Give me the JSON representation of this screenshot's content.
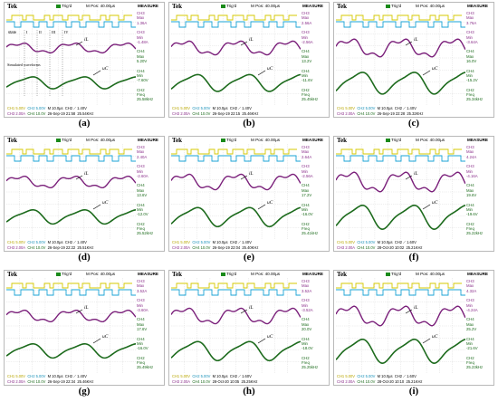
{
  "common": {
    "tek": "Tek",
    "trig": "Trig'd",
    "mpos": "M Pos: 40.00µs",
    "measure": "MEASURE",
    "ch1": "CH1  5.00V",
    "ch2": "CH2  5.00V",
    "mtime": "M 10.0µs",
    "ch3": "CH3  2.00A",
    "ch4": "CH4  10.0V",
    "trigger": "CH2 ⟋ 1.40V",
    "label_il": "iL",
    "label_uc": "uC"
  },
  "panel_a_extra": {
    "state": "state",
    "roman": [
      "I",
      "II",
      "III",
      "IV"
    ],
    "simulated": "Simulated waveforms"
  },
  "panels": [
    {
      "id": "a",
      "caption": "(a)",
      "ch3max": "1.36A",
      "ch3min": "-1.48A",
      "ch4max": "5.20V",
      "ch4min": "-7.60V",
      "freq": "25.58kHz",
      "date": "26-Sep-19 21:58",
      "freq2": "25.54KHz",
      "trigger": "CH2 ⟋ 1.40V"
    },
    {
      "id": "b",
      "caption": "(b)",
      "ch3max": "2.56A",
      "ch3min": "-2.56A",
      "ch4max": "13.2V",
      "ch4min": "-11.6V",
      "freq": "25.45kHz",
      "date": "26-Sep-19 22:15",
      "freq2": "25.46KHz",
      "trigger": "CH2 ⟋ 1.40V"
    },
    {
      "id": "c",
      "caption": "(c)",
      "ch3max": "3.76A",
      "ch3min": "-3.64A",
      "ch4max": "16.0V",
      "ch4min": "-15.2V",
      "freq": "25.34kHz",
      "date": "26-Sep-19 22:28",
      "freq2": "25.32KHz",
      "trigger": "CH2 ⟋ 1.40V"
    },
    {
      "id": "d",
      "caption": "(d)",
      "ch3max": "2.40A",
      "ch3min": "-2.60A",
      "ch4max": "13.6V",
      "ch4min": "-12.0V",
      "freq": "25.52kHz",
      "date": "26-Sep-19 22:22",
      "freq2": "25.51KHz",
      "trigger": "CH2 ⟋ 1.40V"
    },
    {
      "id": "e",
      "caption": "(e)",
      "ch3max": "2.64A",
      "ch3min": "-2.56A",
      "ch4max": "17.2V",
      "ch4min": "-16.0V",
      "freq": "25.41kHz",
      "date": "26-Sep-19 22:04",
      "freq2": "25.40KHz",
      "trigger": "CH2 ⟋ 1.40V"
    },
    {
      "id": "f",
      "caption": "(f)",
      "ch3max": "4.24A",
      "ch3min": "-4.16A",
      "ch4max": "19.6V",
      "ch4min": "-19.6V",
      "freq": "25.22kHz",
      "date": "28-Oct-20 10:02",
      "freq2": "25.21KHz",
      "trigger": "CH2 ⟋ 1.60V"
    },
    {
      "id": "g",
      "caption": "(g)",
      "ch3max": "3.52A",
      "ch3min": "-3.60A",
      "ch4max": "17.6V",
      "ch4min": "-16.0V",
      "freq": "25.49kHz",
      "date": "26-Sep-19 22:34",
      "freq2": "25.46KHz",
      "trigger": "CH2 ⟋ 1.40V"
    },
    {
      "id": "h",
      "caption": "(h)",
      "ch3max": "3.52A",
      "ch3min": "-3.52A",
      "ch4max": "20.0V",
      "ch4min": "-18.0V",
      "freq": "25.25kHz",
      "date": "28-Oct-20 10:05",
      "freq2": "25.25KHz",
      "trigger": "CH2 ⟋ 1.60V"
    },
    {
      "id": "i",
      "caption": "(i)",
      "ch3max": "4.32A",
      "ch3min": "-4.24A",
      "ch4max": "25.2V",
      "ch4min": "-21.6V",
      "freq": "25.23kHz",
      "date": "28-Oct-20 10:10",
      "freq2": "25.21KHz",
      "trigger": "CH2 ⟋ 1.60V"
    }
  ],
  "colors": {
    "ch1": "#d4c800",
    "ch2": "#1aa3d6",
    "ch3": "#7a1f7a",
    "ch4": "#1d6b1d"
  }
}
